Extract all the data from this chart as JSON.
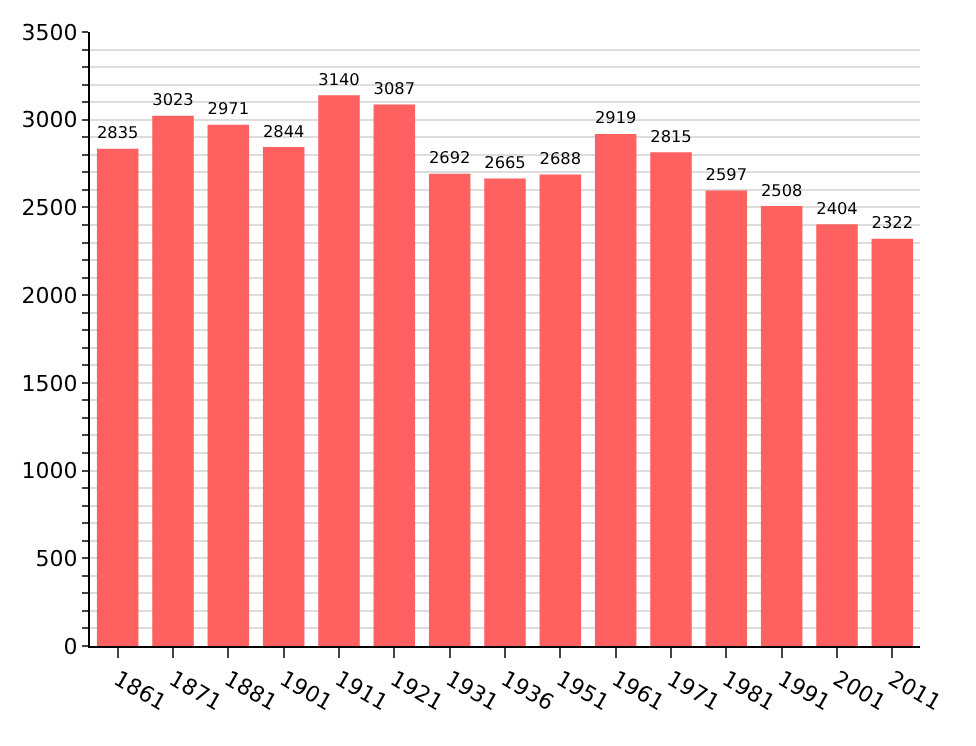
{
  "chart_data": {
    "type": "bar",
    "categories": [
      "1861",
      "1871",
      "1881",
      "1901",
      "1911",
      "1921",
      "1931",
      "1936",
      "1951",
      "1961",
      "1971",
      "1981",
      "1991",
      "2001",
      "2011"
    ],
    "values": [
      2835,
      3023,
      2971,
      2844,
      3140,
      3087,
      2692,
      2665,
      2688,
      2919,
      2815,
      2597,
      2508,
      2404,
      2322
    ],
    "color": "#ff6060",
    "ylim": [
      0,
      3500
    ],
    "yticks": [
      0,
      {
        "value": 100,
        "label": null
      },
      {
        "value": 200,
        "label": null
      },
      {
        "value": 300,
        "label": null
      },
      {
        "value": 400,
        "label": null
      },
      500,
      {
        "value": 600,
        "label": null
      },
      {
        "value": 700,
        "label": null
      },
      {
        "value": 800,
        "label": null
      },
      {
        "value": 900,
        "label": null
      },
      1000,
      {
        "value": 1100,
        "label": null
      },
      {
        "value": 1200,
        "label": null
      },
      {
        "value": 1300,
        "label": null
      },
      {
        "value": 1400,
        "label": null
      },
      1500,
      {
        "value": 1600,
        "label": null
      },
      {
        "value": 1700,
        "label": null
      },
      {
        "value": 1800,
        "label": null
      },
      {
        "value": 1900,
        "label": null
      },
      2000,
      {
        "value": 2100,
        "label": null
      },
      {
        "value": 2200,
        "label": null
      },
      {
        "value": 2300,
        "label": null
      },
      {
        "value": 2400,
        "label": null
      },
      2500,
      {
        "value": 2600,
        "label": null
      },
      {
        "value": 2700,
        "label": null
      },
      {
        "value": 2800,
        "label": null
      },
      {
        "value": 2900,
        "label": null
      },
      3000,
      {
        "value": 3100,
        "label": null
      },
      {
        "value": 3200,
        "label": null
      },
      {
        "value": 3300,
        "label": null
      },
      {
        "value": 3400,
        "label": null
      },
      3500
    ],
    "grid": "y",
    "data_labels": true
  }
}
